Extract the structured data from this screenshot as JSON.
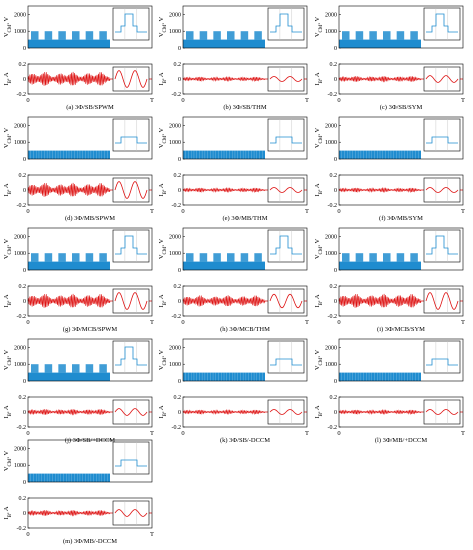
{
  "figure": {
    "voltage_ylabel": "V",
    "voltage_ylabel_sub": "CM",
    "voltage_ylabel_unit": ", V",
    "current_ylabel": "I",
    "current_ylabel_sub": "B",
    "current_ylabel_unit": ", A",
    "x_start_label": "0",
    "x_end_label": "T",
    "voltage_ticks": [
      "0",
      "1000",
      "2000"
    ],
    "current_ticks": [
      "-0.2",
      "0",
      "0.2"
    ]
  },
  "colors": {
    "voltage": "#1f8ccf",
    "current": "#dd1111",
    "axis": "#000000",
    "inset_grid": "#c0c0c0"
  },
  "chart_data": [
    {
      "type": "line",
      "caption": "(a) 3Φ/SB/SPWM",
      "voltage": {
        "ylim": [
          0,
          2500
        ],
        "levels": [
          0,
          500,
          1000
        ],
        "pattern": "square-wave"
      },
      "current": {
        "ylim": [
          -0.2,
          0.2
        ],
        "amplitude": 0.1
      },
      "x": {
        "labels": [
          "0",
          "T"
        ]
      }
    },
    {
      "type": "line",
      "caption": "(b) 3Φ/SB/THM",
      "voltage": {
        "ylim": [
          0,
          2500
        ],
        "levels": [
          0,
          500,
          1000
        ],
        "pattern": "square-wave"
      },
      "current": {
        "ylim": [
          -0.2,
          0.2
        ],
        "amplitude": 0.03
      },
      "x": {
        "labels": [
          "0",
          "T"
        ]
      }
    },
    {
      "type": "line",
      "caption": "(c) 3Φ/SB/SYM",
      "voltage": {
        "ylim": [
          0,
          2500
        ],
        "levels": [
          0,
          500,
          1000
        ],
        "pattern": "square-wave"
      },
      "current": {
        "ylim": [
          -0.2,
          0.2
        ],
        "amplitude": 0.04
      },
      "x": {
        "labels": [
          "0",
          "T"
        ]
      }
    },
    {
      "type": "line",
      "caption": "(d) 3Φ/MB/SPWM",
      "voltage": {
        "ylim": [
          0,
          2500
        ],
        "levels": [
          0,
          500
        ],
        "pattern": "low-band"
      },
      "current": {
        "ylim": [
          -0.2,
          0.2
        ],
        "amplitude": 0.1
      },
      "x": {
        "labels": [
          "0",
          "T"
        ]
      }
    },
    {
      "type": "line",
      "caption": "(e) 3Φ/MB/THM",
      "voltage": {
        "ylim": [
          0,
          2500
        ],
        "levels": [
          0,
          500
        ],
        "pattern": "low-band"
      },
      "current": {
        "ylim": [
          -0.2,
          0.2
        ],
        "amplitude": 0.03
      },
      "x": {
        "labels": [
          "0",
          "T"
        ]
      }
    },
    {
      "type": "line",
      "caption": "(f) 3Φ/MB/SYM",
      "voltage": {
        "ylim": [
          0,
          2500
        ],
        "levels": [
          0,
          500
        ],
        "pattern": "low-band"
      },
      "current": {
        "ylim": [
          -0.2,
          0.2
        ],
        "amplitude": 0.03
      },
      "x": {
        "labels": [
          "0",
          "T"
        ]
      }
    },
    {
      "type": "line",
      "caption": "(g) 3Φ/MCB/SPWM",
      "voltage": {
        "ylim": [
          0,
          2500
        ],
        "levels": [
          0,
          500,
          1000
        ],
        "pattern": "square-wave"
      },
      "current": {
        "ylim": [
          -0.2,
          0.2
        ],
        "amplitude": 0.1
      },
      "x": {
        "labels": [
          "0",
          "T"
        ]
      }
    },
    {
      "type": "line",
      "caption": "(h) 3Φ/MCB/THM",
      "voltage": {
        "ylim": [
          0,
          2500
        ],
        "levels": [
          0,
          500,
          1000
        ],
        "pattern": "square-wave"
      },
      "current": {
        "ylim": [
          -0.2,
          0.2
        ],
        "amplitude": 0.08
      },
      "x": {
        "labels": [
          "0",
          "T"
        ]
      }
    },
    {
      "type": "line",
      "caption": "(i) 3Φ/MCB/SYM",
      "voltage": {
        "ylim": [
          0,
          2500
        ],
        "levels": [
          0,
          500,
          1000
        ],
        "pattern": "square-wave"
      },
      "current": {
        "ylim": [
          -0.2,
          0.2
        ],
        "amplitude": 0.1
      },
      "x": {
        "labels": [
          "0",
          "T"
        ]
      }
    },
    {
      "type": "line",
      "caption": "(j) 3Φ/SB/+DCCM",
      "voltage": {
        "ylim": [
          0,
          2500
        ],
        "levels": [
          0,
          500,
          1000
        ],
        "pattern": "square-wave"
      },
      "current": {
        "ylim": [
          -0.2,
          0.2
        ],
        "amplitude": 0.04
      },
      "x": {
        "labels": [
          "0",
          "T"
        ]
      }
    },
    {
      "type": "line",
      "caption": "(k) 3Φ/SB/-DCCM",
      "voltage": {
        "ylim": [
          0,
          2500
        ],
        "levels": [
          0,
          500
        ],
        "pattern": "low-band"
      },
      "current": {
        "ylim": [
          -0.2,
          0.2
        ],
        "amplitude": 0.03
      },
      "x": {
        "labels": [
          "0",
          "T"
        ]
      }
    },
    {
      "type": "line",
      "caption": "(l) 3Φ/MB/+DCCM",
      "voltage": {
        "ylim": [
          0,
          2500
        ],
        "levels": [
          0,
          500
        ],
        "pattern": "low-band"
      },
      "current": {
        "ylim": [
          -0.2,
          0.2
        ],
        "amplitude": 0.03
      },
      "x": {
        "labels": [
          "0",
          "T"
        ]
      }
    },
    {
      "type": "line",
      "caption": "(m) 3Φ/MB/-DCCM",
      "voltage": {
        "ylim": [
          0,
          2500
        ],
        "levels": [
          0,
          500
        ],
        "pattern": "low-band"
      },
      "current": {
        "ylim": [
          -0.2,
          0.2
        ],
        "amplitude": 0.04
      },
      "x": {
        "labels": [
          "0",
          "T"
        ]
      }
    }
  ]
}
